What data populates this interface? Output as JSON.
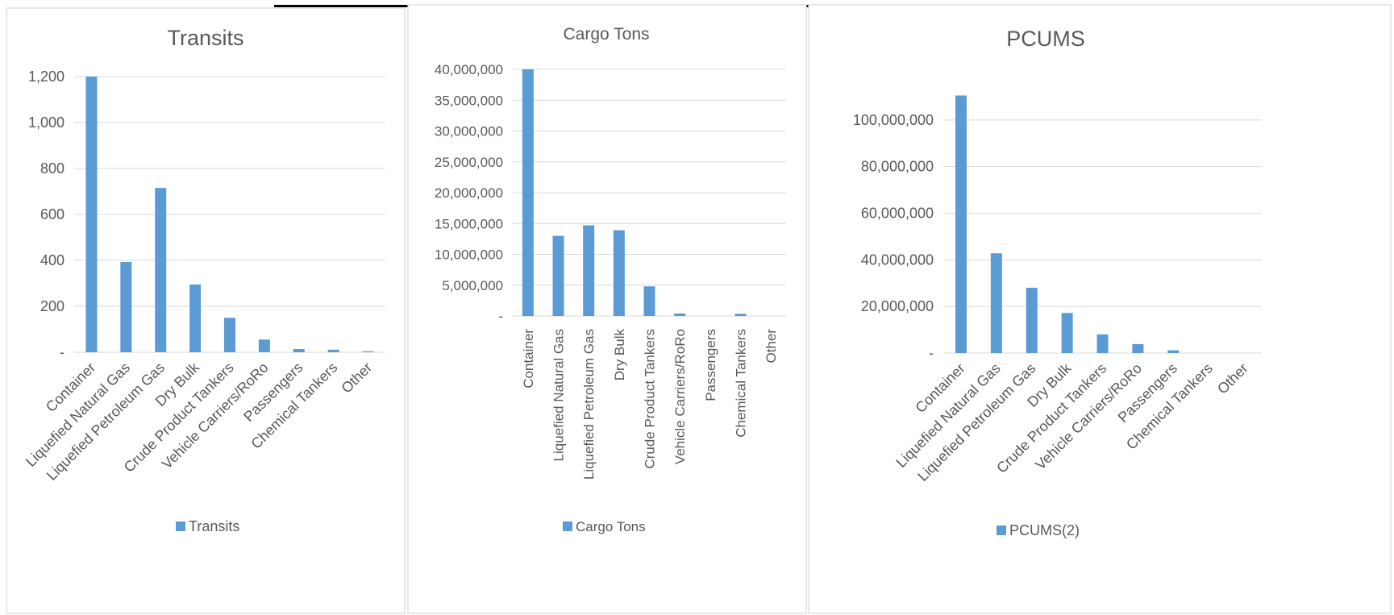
{
  "chart_data": [
    {
      "type": "bar",
      "title": "Transits",
      "categories": [
        "Container",
        "Liquefied Natural Gas",
        "Liquefied Petroleum Gas",
        "Dry Bulk",
        "Crude Product Tankers",
        "Vehicle Carriers/RoRo",
        "Passengers",
        "Chemical Tankers",
        "Other"
      ],
      "series": [
        {
          "name": "Transits",
          "values": [
            1200,
            393,
            715,
            295,
            150,
            55,
            14,
            11,
            4
          ]
        }
      ],
      "ylim": [
        0,
        1200
      ],
      "yticks": [
        {
          "value": 0,
          "label": "-"
        },
        {
          "value": 200,
          "label": "200"
        },
        {
          "value": 400,
          "label": "400"
        },
        {
          "value": 600,
          "label": "600"
        },
        {
          "value": 800,
          "label": "800"
        },
        {
          "value": 1000,
          "label": "1,000"
        },
        {
          "value": 1200,
          "label": "1,200"
        }
      ],
      "label_rotation": 45,
      "grid": true,
      "legend": "bottom",
      "color": "#5B9BD5"
    },
    {
      "type": "bar",
      "title": "Cargo Tons",
      "categories": [
        "Container",
        "Liquefied Natural Gas",
        "Liquefied Petroleum Gas",
        "Dry Bulk",
        "Crude Product Tankers",
        "Vehicle Carriers/RoRo",
        "Passengers",
        "Chemical Tankers",
        "Other"
      ],
      "series": [
        {
          "name": "Cargo Tons",
          "values": [
            40000000,
            13000000,
            14700000,
            13900000,
            4800000,
            400000,
            0,
            350000,
            0
          ]
        }
      ],
      "ylim": [
        0,
        40000000
      ],
      "yticks": [
        {
          "value": 0,
          "label": "-"
        },
        {
          "value": 5000000,
          "label": "5,000,000"
        },
        {
          "value": 10000000,
          "label": "10,000,000"
        },
        {
          "value": 15000000,
          "label": "15,000,000"
        },
        {
          "value": 20000000,
          "label": "20,000,000"
        },
        {
          "value": 25000000,
          "label": "25,000,000"
        },
        {
          "value": 30000000,
          "label": "30,000,000"
        },
        {
          "value": 35000000,
          "label": "35,000,000"
        },
        {
          "value": 40000000,
          "label": "40,000,000"
        }
      ],
      "label_rotation": 90,
      "grid": true,
      "legend": "bottom",
      "color": "#5B9BD5"
    },
    {
      "type": "bar",
      "title": "PCUMS",
      "categories": [
        "Container",
        "Liquefied Natural Gas",
        "Liquefied Petroleum Gas",
        "Dry Bulk",
        "Crude Product Tankers",
        "Vehicle Carriers/RoRo",
        "Passengers",
        "Chemical Tankers",
        "Other"
      ],
      "series": [
        {
          "name": "PCUMS(2)",
          "values": [
            110500000,
            42800000,
            28000000,
            17200000,
            8000000,
            3800000,
            1200000,
            0,
            0
          ]
        }
      ],
      "ylim": [
        0,
        120000000
      ],
      "yticks": [
        {
          "value": 0,
          "label": "-"
        },
        {
          "value": 20000000,
          "label": "20,000,000"
        },
        {
          "value": 40000000,
          "label": "40,000,000"
        },
        {
          "value": 60000000,
          "label": "60,000,000"
        },
        {
          "value": 80000000,
          "label": "80,000,000"
        },
        {
          "value": 100000000,
          "label": "100,000,000"
        }
      ],
      "label_rotation": 45,
      "grid": true,
      "legend": "bottom",
      "color": "#5B9BD5"
    }
  ]
}
